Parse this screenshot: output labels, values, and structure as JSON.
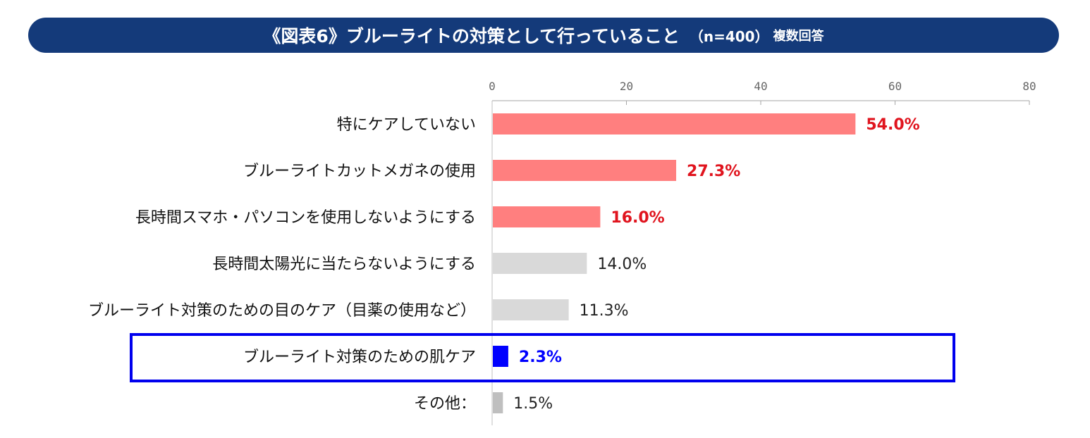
{
  "header": {
    "title": "《図表6》ブルーライトの対策として行っていること",
    "sample": "（n=400）",
    "note": "複数回答"
  },
  "chart_data": {
    "type": "bar",
    "orientation": "horizontal",
    "title": "《図表6》ブルーライトの対策として行っていること （n=400） 複数回答",
    "xlim": [
      0,
      80
    ],
    "ticks": [
      0,
      20,
      40,
      60,
      80
    ],
    "unit": "%",
    "categories": [
      "特にケアしていない",
      "ブルーライトカットメガネの使用",
      "長時間スマホ・パソコンを使用しないようにする",
      "長時間太陽光に当たらないようにする",
      "ブルーライト対策のための目のケア（目薬の使用など）",
      "ブルーライト対策のための肌ケア",
      "その他："
    ],
    "values": [
      54.0,
      27.3,
      16.0,
      14.0,
      11.3,
      2.3,
      1.5
    ],
    "labels": [
      "54.0%",
      "27.3%",
      "16.0%",
      "14.0%",
      "11.3%",
      "2.3%",
      "1.5%"
    ],
    "bar_colors": [
      "#ff7f7f",
      "#ff7f7f",
      "#ff7f7f",
      "#d9d9d9",
      "#d9d9d9",
      "#0000ff",
      "#bfbfbf"
    ],
    "label_colors": [
      "#e0141e",
      "#e0141e",
      "#e0141e",
      "#222222",
      "#222222",
      "#0000ff",
      "#222222"
    ],
    "label_bold": [
      true,
      true,
      true,
      false,
      false,
      true,
      false
    ],
    "highlight_index": 5,
    "highlight_color": "#0000ee",
    "grid": false
  }
}
